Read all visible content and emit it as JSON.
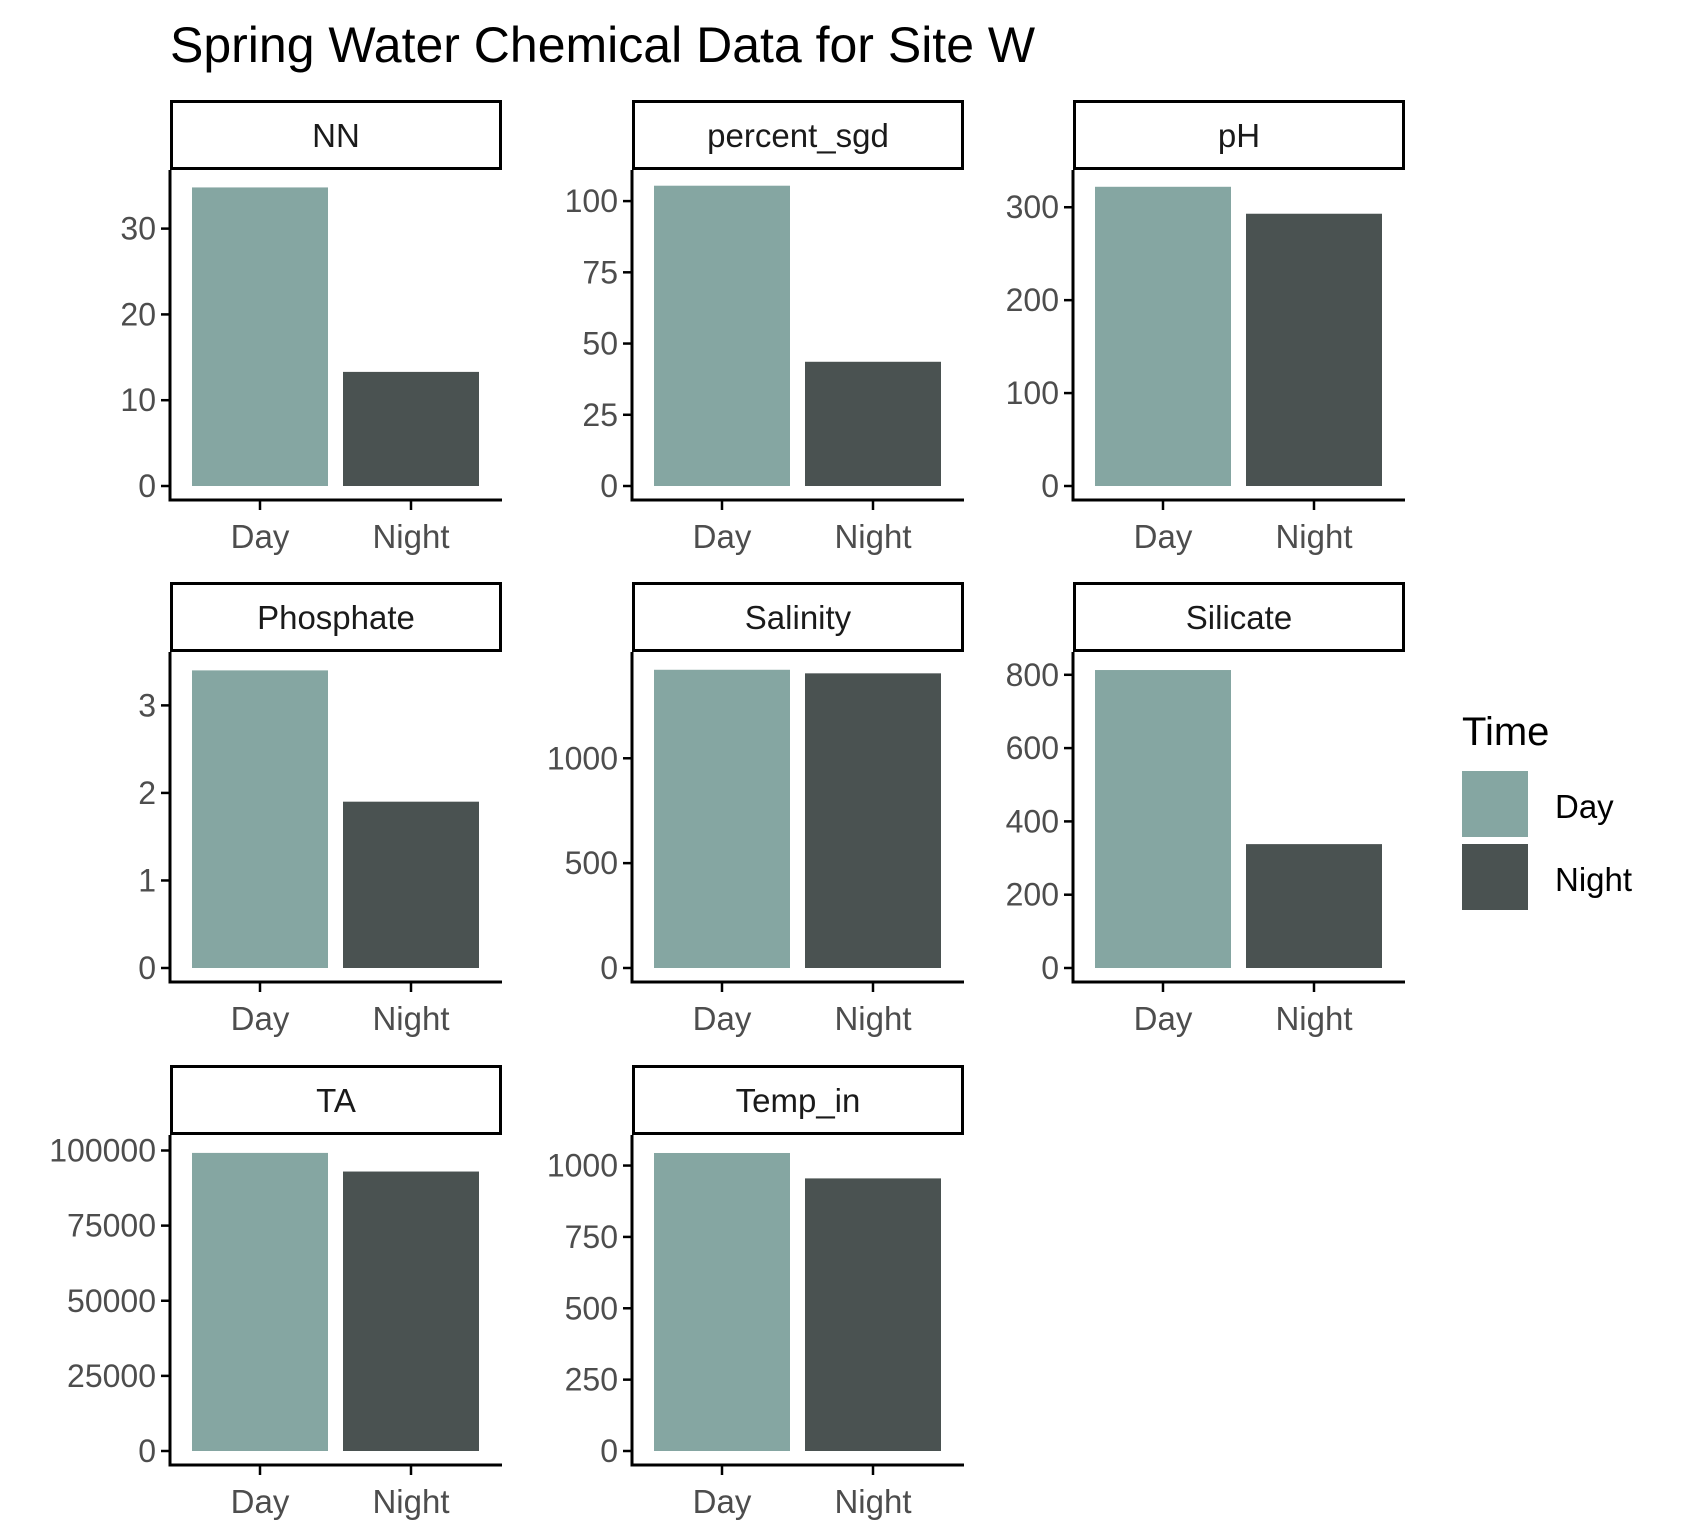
{
  "chart_data": {
    "type": "bar",
    "title": "Spring Water Chemical Data for Site W",
    "categories": [
      "Day",
      "Night"
    ],
    "legend": {
      "title": "Time",
      "position": "right",
      "entries": [
        "Day",
        "Night"
      ]
    },
    "colors": {
      "Day": "#85A6A2",
      "Night": "#4A5251",
      "axis": "#000000",
      "tick_text": "#4D4D4D"
    },
    "grid": false,
    "facets": [
      {
        "name": "NN",
        "values": [
          34.8,
          13.3
        ],
        "ylim": [
          0,
          35.2
        ],
        "yticks": [
          0,
          10,
          20,
          30
        ],
        "ytick_labels": [
          "0",
          "10",
          "20",
          "30"
        ]
      },
      {
        "name": "percent_sgd",
        "values": [
          105.4,
          43.6
        ],
        "ylim": [
          0,
          106
        ],
        "yticks": [
          0,
          25,
          50,
          75,
          100
        ],
        "ytick_labels": [
          "0",
          "25",
          "50",
          "75",
          "100"
        ]
      },
      {
        "name": "pH",
        "values": [
          322,
          293
        ],
        "ylim": [
          0,
          325
        ],
        "yticks": [
          0,
          100,
          200,
          300
        ],
        "ytick_labels": [
          "0",
          "100",
          "200",
          "300"
        ]
      },
      {
        "name": "Phosphate",
        "values": [
          3.4,
          1.9
        ],
        "ylim": [
          0,
          3.45
        ],
        "yticks": [
          0,
          1,
          2,
          3
        ],
        "ytick_labels": [
          "0",
          "1",
          "2",
          "3"
        ]
      },
      {
        "name": "Salinity",
        "values": [
          1422,
          1405
        ],
        "ylim": [
          0,
          1440
        ],
        "yticks": [
          0,
          500,
          1000
        ],
        "ytick_labels": [
          "0",
          "500",
          "1000"
        ]
      },
      {
        "name": "Silicate",
        "values": [
          813,
          338
        ],
        "ylim": [
          0,
          824
        ],
        "yticks": [
          0,
          200,
          400,
          600,
          800
        ],
        "ytick_labels": [
          "0",
          "200",
          "400",
          "600",
          "800"
        ]
      },
      {
        "name": "TA",
        "values": [
          99200,
          93000
        ],
        "ylim": [
          0,
          100500
        ],
        "yticks": [
          0,
          25000,
          50000,
          75000,
          100000
        ],
        "ytick_labels": [
          "0",
          "25000",
          "50000",
          "75000",
          "100000"
        ]
      },
      {
        "name": "Temp_in",
        "values": [
          1044,
          955
        ],
        "ylim": [
          0,
          1058
        ],
        "yticks": [
          0,
          250,
          500,
          750,
          1000
        ],
        "ytick_labels": [
          "0",
          "250",
          "500",
          "750",
          "1000"
        ]
      }
    ]
  }
}
